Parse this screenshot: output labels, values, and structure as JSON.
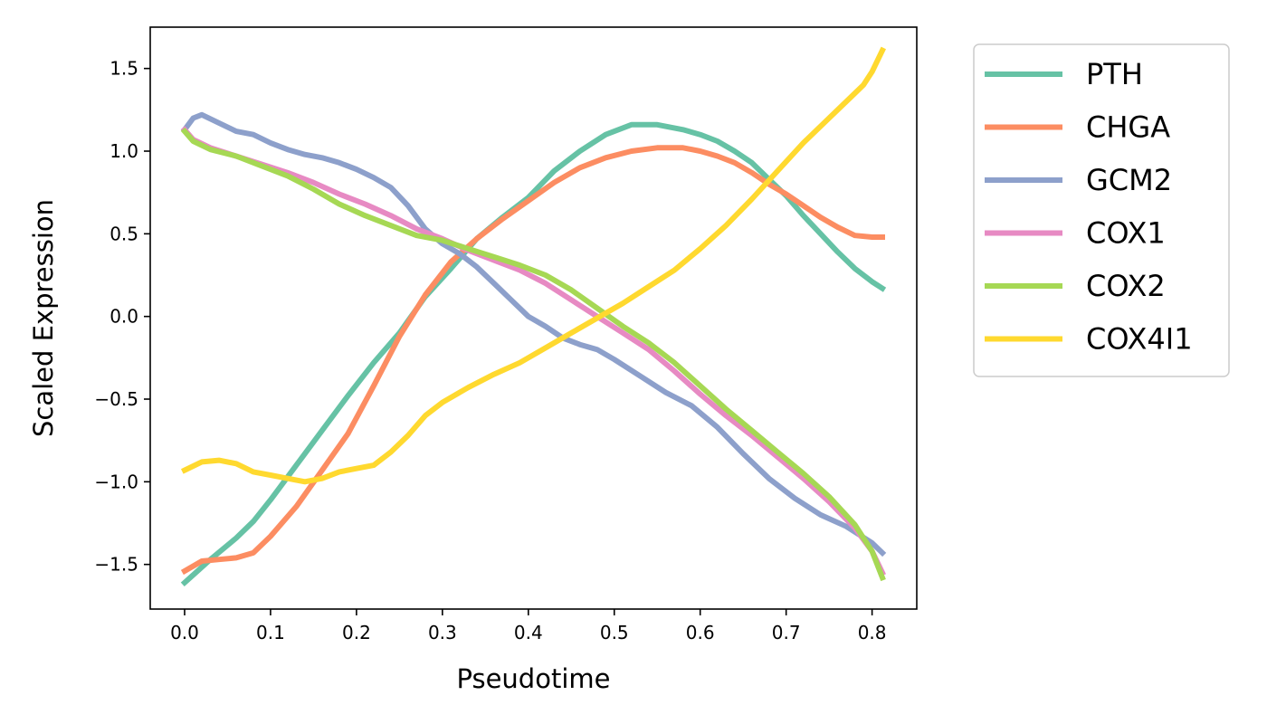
{
  "chart_data": {
    "type": "line",
    "title": "",
    "xlabel": "Pseudotime",
    "ylabel": "Scaled Expression",
    "xlim": [
      -0.04,
      0.852
    ],
    "ylim": [
      -1.77,
      1.75
    ],
    "xticks": [
      0.0,
      0.1,
      0.2,
      0.3,
      0.4,
      0.5,
      0.6,
      0.7,
      0.8
    ],
    "xtick_labels": [
      "0.0",
      "0.1",
      "0.2",
      "0.3",
      "0.4",
      "0.5",
      "0.6",
      "0.7",
      "0.8"
    ],
    "yticks": [
      -1.5,
      -1.0,
      -0.5,
      0.0,
      0.5,
      1.0,
      1.5
    ],
    "ytick_labels": [
      "−1.5",
      "−1.0",
      "−0.5",
      "0.0",
      "0.5",
      "1.0",
      "1.5"
    ],
    "grid": false,
    "legend_position": "outside-right",
    "series": [
      {
        "name": "PTH",
        "color": "#66c2a5",
        "x": [
          0.0,
          0.03,
          0.06,
          0.08,
          0.1,
          0.13,
          0.16,
          0.19,
          0.22,
          0.25,
          0.28,
          0.31,
          0.34,
          0.37,
          0.4,
          0.43,
          0.46,
          0.49,
          0.52,
          0.55,
          0.58,
          0.6,
          0.62,
          0.64,
          0.66,
          0.68,
          0.7,
          0.72,
          0.74,
          0.76,
          0.78,
          0.8,
          0.812
        ],
        "values": [
          -1.61,
          -1.47,
          -1.34,
          -1.24,
          -1.11,
          -0.9,
          -0.69,
          -0.48,
          -0.28,
          -0.1,
          0.12,
          0.29,
          0.47,
          0.6,
          0.72,
          0.88,
          1.0,
          1.1,
          1.16,
          1.16,
          1.13,
          1.1,
          1.06,
          1.0,
          0.93,
          0.83,
          0.73,
          0.61,
          0.5,
          0.39,
          0.29,
          0.21,
          0.17
        ]
      },
      {
        "name": "CHGA",
        "color": "#fc8d62",
        "x": [
          0.0,
          0.02,
          0.04,
          0.06,
          0.08,
          0.1,
          0.13,
          0.16,
          0.19,
          0.22,
          0.25,
          0.28,
          0.31,
          0.34,
          0.37,
          0.4,
          0.43,
          0.46,
          0.49,
          0.52,
          0.55,
          0.58,
          0.6,
          0.62,
          0.64,
          0.66,
          0.68,
          0.7,
          0.72,
          0.74,
          0.76,
          0.78,
          0.8,
          0.812
        ],
        "values": [
          -1.54,
          -1.48,
          -1.47,
          -1.46,
          -1.43,
          -1.33,
          -1.15,
          -0.93,
          -0.71,
          -0.42,
          -0.12,
          0.13,
          0.33,
          0.47,
          0.59,
          0.7,
          0.81,
          0.9,
          0.96,
          1.0,
          1.02,
          1.02,
          1.0,
          0.97,
          0.93,
          0.87,
          0.8,
          0.74,
          0.67,
          0.6,
          0.54,
          0.49,
          0.48,
          0.48
        ]
      },
      {
        "name": "GCM2",
        "color": "#8da0cb",
        "x": [
          0.0,
          0.01,
          0.02,
          0.04,
          0.06,
          0.08,
          0.1,
          0.12,
          0.14,
          0.16,
          0.18,
          0.2,
          0.22,
          0.24,
          0.26,
          0.28,
          0.3,
          0.32,
          0.34,
          0.36,
          0.38,
          0.4,
          0.42,
          0.44,
          0.46,
          0.48,
          0.5,
          0.53,
          0.56,
          0.59,
          0.62,
          0.65,
          0.68,
          0.71,
          0.74,
          0.77,
          0.8,
          0.812
        ],
        "values": [
          1.13,
          1.2,
          1.22,
          1.17,
          1.12,
          1.1,
          1.05,
          1.01,
          0.98,
          0.96,
          0.93,
          0.89,
          0.84,
          0.78,
          0.67,
          0.53,
          0.44,
          0.38,
          0.3,
          0.2,
          0.1,
          0.0,
          -0.06,
          -0.13,
          -0.17,
          -0.2,
          -0.26,
          -0.36,
          -0.46,
          -0.54,
          -0.67,
          -0.83,
          -0.98,
          -1.1,
          -1.2,
          -1.27,
          -1.37,
          -1.43
        ]
      },
      {
        "name": "COX1",
        "color": "#e78ac3",
        "x": [
          0.0,
          0.01,
          0.03,
          0.06,
          0.09,
          0.12,
          0.15,
          0.18,
          0.21,
          0.24,
          0.27,
          0.3,
          0.33,
          0.36,
          0.39,
          0.42,
          0.45,
          0.48,
          0.51,
          0.54,
          0.57,
          0.6,
          0.63,
          0.66,
          0.69,
          0.72,
          0.75,
          0.78,
          0.8,
          0.812
        ],
        "values": [
          1.13,
          1.07,
          1.02,
          0.97,
          0.92,
          0.87,
          0.81,
          0.74,
          0.68,
          0.61,
          0.53,
          0.47,
          0.4,
          0.34,
          0.28,
          0.2,
          0.1,
          0.0,
          -0.1,
          -0.2,
          -0.33,
          -0.47,
          -0.6,
          -0.72,
          -0.85,
          -0.98,
          -1.12,
          -1.28,
          -1.42,
          -1.55
        ]
      },
      {
        "name": "COX2",
        "color": "#a6d854",
        "x": [
          0.0,
          0.01,
          0.03,
          0.06,
          0.09,
          0.12,
          0.15,
          0.18,
          0.21,
          0.24,
          0.27,
          0.3,
          0.33,
          0.36,
          0.39,
          0.42,
          0.45,
          0.48,
          0.51,
          0.54,
          0.57,
          0.6,
          0.63,
          0.66,
          0.69,
          0.72,
          0.75,
          0.78,
          0.8,
          0.812
        ],
        "values": [
          1.12,
          1.06,
          1.01,
          0.97,
          0.91,
          0.85,
          0.77,
          0.68,
          0.61,
          0.55,
          0.49,
          0.46,
          0.41,
          0.36,
          0.31,
          0.25,
          0.16,
          0.05,
          -0.06,
          -0.16,
          -0.28,
          -0.42,
          -0.56,
          -0.69,
          -0.82,
          -0.95,
          -1.09,
          -1.26,
          -1.42,
          -1.58
        ]
      },
      {
        "name": "COX4I1",
        "color": "#ffd92f",
        "x": [
          0.0,
          0.02,
          0.04,
          0.06,
          0.08,
          0.1,
          0.12,
          0.14,
          0.16,
          0.18,
          0.2,
          0.22,
          0.24,
          0.26,
          0.28,
          0.3,
          0.33,
          0.36,
          0.39,
          0.42,
          0.45,
          0.48,
          0.51,
          0.54,
          0.57,
          0.6,
          0.63,
          0.66,
          0.69,
          0.72,
          0.75,
          0.78,
          0.79,
          0.8,
          0.812
        ],
        "values": [
          -0.93,
          -0.88,
          -0.87,
          -0.89,
          -0.94,
          -0.96,
          -0.98,
          -1.0,
          -0.98,
          -0.94,
          -0.92,
          -0.9,
          -0.82,
          -0.72,
          -0.6,
          -0.52,
          -0.43,
          -0.35,
          -0.28,
          -0.19,
          -0.1,
          -0.01,
          0.08,
          0.18,
          0.28,
          0.41,
          0.55,
          0.71,
          0.88,
          1.05,
          1.2,
          1.35,
          1.4,
          1.48,
          1.61
        ]
      }
    ]
  }
}
